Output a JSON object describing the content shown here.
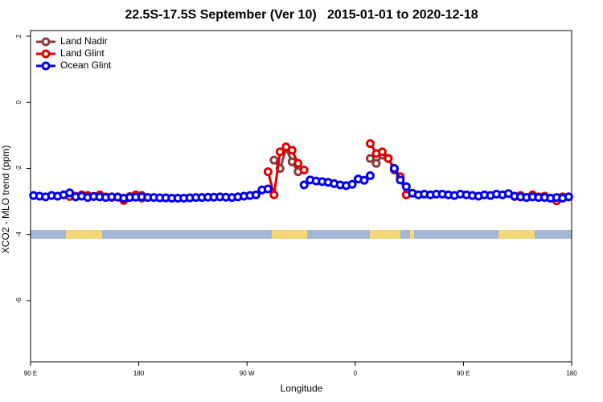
{
  "chart_data": {
    "type": "line",
    "title": "22.5S-17.5S September (Ver 10)   2015-01-01 to 2020-12-18",
    "x_label": "Longitude",
    "y_label": "XCO2 - MLO trend (ppm)",
    "x": [
      92.5,
      97.5,
      102.5,
      107.5,
      112.5,
      117.5,
      122.5,
      127.5,
      132.5,
      137.5,
      142.5,
      147.5,
      152.5,
      157.5,
      162.5,
      167.5,
      172.5,
      177.5,
      182.5,
      187.5,
      192.5,
      197.5,
      202.5,
      207.5,
      212.5,
      217.5,
      222.5,
      227.5,
      232.5,
      237.5,
      242.5,
      247.5,
      252.5,
      257.5,
      262.5,
      267.5,
      272.5,
      277.5,
      282.5,
      287.5,
      292.5,
      297.5,
      302.5,
      307.5,
      312.5,
      317.5,
      322.5,
      327.5,
      332.5,
      337.5,
      342.5,
      347.5,
      352.5,
      357.5,
      362.5,
      367.5,
      372.5,
      377.5,
      382.5,
      387.5,
      392.5,
      397.5,
      402.5,
      407.5,
      412.5,
      417.5,
      422.5,
      427.5,
      432.5,
      437.5,
      442.5,
      447.5,
      452.5,
      457.5,
      462.5,
      467.5,
      472.5,
      477.5,
      482.5,
      487.5,
      492.5,
      497.5,
      502.5,
      507.5,
      512.5,
      517.5,
      522.5,
      527.5,
      532.5,
      537.5
    ],
    "series": [
      {
        "name": "Land Nadir",
        "color": "#8b3a3a",
        "values": [
          null,
          null,
          null,
          null,
          null,
          null,
          null,
          null,
          null,
          null,
          null,
          null,
          null,
          null,
          null,
          null,
          -2.85,
          -2.82,
          -2.9,
          null,
          null,
          null,
          null,
          null,
          null,
          null,
          null,
          null,
          null,
          null,
          null,
          null,
          null,
          null,
          null,
          null,
          null,
          null,
          null,
          null,
          -1.75,
          -2.0,
          -1.4,
          -1.8,
          -2.1,
          null,
          null,
          null,
          null,
          null,
          null,
          null,
          null,
          null,
          null,
          null,
          -1.7,
          -1.85,
          -1.6,
          -1.7,
          -2.05,
          -2.3,
          -2.8,
          null,
          null,
          null,
          null,
          null,
          null,
          null,
          null,
          null,
          null,
          null,
          null,
          null,
          null,
          null,
          null,
          null,
          null,
          null,
          null,
          null,
          null,
          null,
          null,
          null,
          null,
          null
        ]
      },
      {
        "name": "Land Glint",
        "color": "#e00000",
        "values": [
          null,
          null,
          null,
          null,
          null,
          null,
          -2.85,
          -2.84,
          -2.8,
          -2.82,
          -2.85,
          -2.8,
          -2.86,
          -2.88,
          -2.86,
          -2.97,
          -2.88,
          -2.8,
          -2.82,
          null,
          null,
          null,
          null,
          null,
          null,
          null,
          null,
          null,
          null,
          null,
          null,
          null,
          null,
          null,
          null,
          null,
          null,
          null,
          null,
          -2.1,
          -2.8,
          -1.5,
          -1.35,
          -1.45,
          -1.85,
          -2.05,
          null,
          null,
          null,
          null,
          null,
          null,
          null,
          null,
          null,
          null,
          -1.25,
          -1.55,
          -1.5,
          -1.7,
          -2.0,
          -2.25,
          -2.8,
          null,
          null,
          null,
          null,
          null,
          null,
          null,
          null,
          null,
          null,
          null,
          null,
          null,
          null,
          null,
          null,
          null,
          -2.85,
          -2.82,
          -2.88,
          -2.8,
          -2.86,
          -2.84,
          -2.9,
          -2.98,
          -2.86,
          null
        ]
      },
      {
        "name": "Ocean Glint",
        "color": "#0000ee",
        "values": [
          -2.82,
          -2.84,
          -2.86,
          -2.82,
          -2.84,
          -2.8,
          -2.74,
          -2.86,
          -2.84,
          -2.88,
          -2.85,
          -2.86,
          -2.88,
          -2.86,
          -2.87,
          -2.9,
          -2.88,
          -2.87,
          -2.86,
          -2.88,
          -2.88,
          -2.89,
          -2.89,
          -2.9,
          -2.9,
          -2.9,
          -2.89,
          -2.88,
          -2.88,
          -2.87,
          -2.87,
          -2.86,
          -2.87,
          -2.88,
          -2.86,
          -2.84,
          -2.82,
          -2.8,
          -2.65,
          -2.62,
          null,
          null,
          null,
          null,
          null,
          -2.5,
          -2.35,
          -2.38,
          -2.4,
          -2.42,
          -2.46,
          -2.5,
          -2.52,
          -2.48,
          -2.32,
          -2.36,
          -2.22,
          null,
          null,
          null,
          -2.0,
          -2.35,
          -2.55,
          -2.75,
          -2.8,
          -2.78,
          -2.8,
          -2.78,
          -2.78,
          -2.8,
          -2.82,
          -2.78,
          -2.8,
          -2.82,
          -2.84,
          -2.8,
          -2.82,
          -2.78,
          -2.8,
          -2.76,
          -2.84,
          -2.86,
          -2.88,
          -2.86,
          -2.88,
          -2.88,
          -2.9,
          -2.88,
          -2.9,
          -2.86
        ]
      }
    ],
    "xlim": [
      90,
      540
    ],
    "ylim": [
      -7.85,
      2.17
    ],
    "xticks": [
      {
        "value": 90,
        "label": "90 E"
      },
      180,
      {
        "value": 270,
        "label": "90 W"
      },
      {
        "value": 360,
        "label": "0"
      },
      {
        "value": 450,
        "label": "90 E"
      },
      {
        "value": 540,
        "label": "180"
      }
    ],
    "yticks": [
      2,
      0,
      -2,
      -4,
      -6
    ],
    "legend": "top-left"
  }
}
